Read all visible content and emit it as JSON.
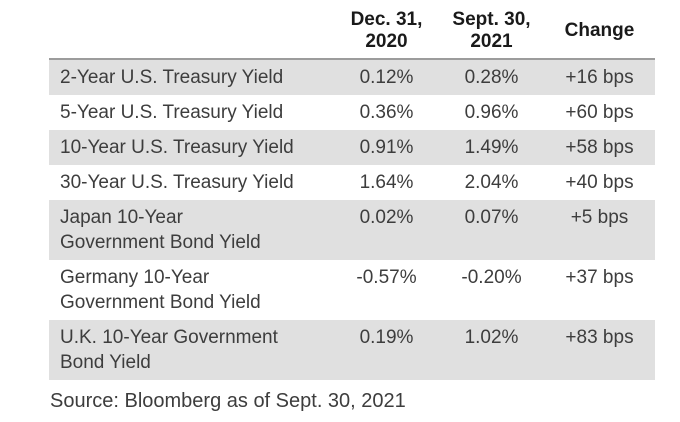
{
  "colors": {
    "row_stripe": "#e0e0e0",
    "header_rule": "#9c9c9c",
    "header_text": "#1a1a1a",
    "body_text": "#3d3d3d",
    "background": "#ffffff"
  },
  "chart_data": {
    "type": "table",
    "title": "",
    "columns": [
      "",
      "Dec. 31, 2020",
      "Sept. 30, 2021",
      "Change"
    ],
    "header": {
      "col2": {
        "line1": "Dec. 31,",
        "line2": "2020"
      },
      "col3": {
        "line1": "Sept. 30,",
        "line2": "2021"
      },
      "col4": "Change"
    },
    "rows": [
      {
        "label": [
          "2-Year U.S. Treasury Yield"
        ],
        "dec_31_2020": "0.12%",
        "sept_30_2021": "0.28%",
        "change": "+16 bps"
      },
      {
        "label": [
          "5-Year U.S. Treasury Yield"
        ],
        "dec_31_2020": "0.36%",
        "sept_30_2021": "0.96%",
        "change": "+60 bps"
      },
      {
        "label": [
          "10-Year U.S. Treasury Yield"
        ],
        "dec_31_2020": "0.91%",
        "sept_30_2021": "1.49%",
        "change": "+58 bps"
      },
      {
        "label": [
          "30-Year U.S. Treasury Yield"
        ],
        "dec_31_2020": "1.64%",
        "sept_30_2021": "2.04%",
        "change": "+40 bps"
      },
      {
        "label": [
          "Japan 10-Year",
          "Government Bond Yield"
        ],
        "dec_31_2020": "0.02%",
        "sept_30_2021": "0.07%",
        "change": "+5 bps"
      },
      {
        "label": [
          "Germany 10-Year",
          "Government Bond Yield"
        ],
        "dec_31_2020": "-0.57%",
        "sept_30_2021": "-0.20%",
        "change": "+37 bps"
      },
      {
        "label": [
          "U.K. 10-Year Government",
          "Bond Yield"
        ],
        "dec_31_2020": "0.19%",
        "sept_30_2021": "1.02%",
        "change": "+83 bps"
      }
    ],
    "source": "Source: Bloomberg as of Sept. 30, 2021",
    "layout": {
      "grid": "off",
      "striped_rows": true,
      "first_row_striped": true
    }
  }
}
